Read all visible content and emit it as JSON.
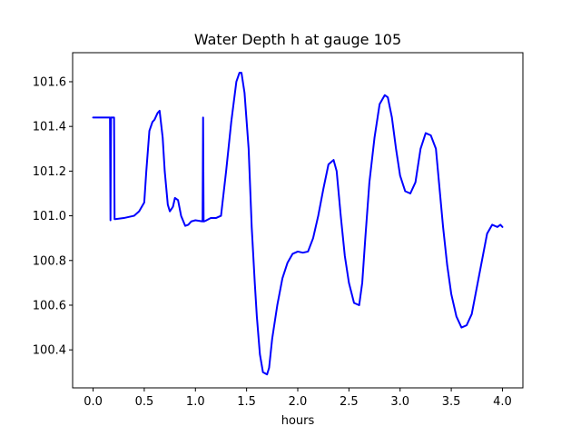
{
  "chart_data": {
    "type": "line",
    "title": "Water Depth h at gauge 105",
    "xlabel": "hours",
    "ylabel": "",
    "xlim": [
      -0.2,
      4.2
    ],
    "ylim": [
      100.23,
      101.73
    ],
    "xticks": [
      0.0,
      0.5,
      1.0,
      1.5,
      2.0,
      2.5,
      3.0,
      3.5,
      4.0
    ],
    "xtick_labels": [
      "0.0",
      "0.5",
      "1.0",
      "1.5",
      "2.0",
      "2.5",
      "3.0",
      "3.5",
      "4.0"
    ],
    "yticks": [
      100.4,
      100.6,
      100.8,
      101.0,
      101.2,
      101.4,
      101.6
    ],
    "ytick_labels": [
      "100.4",
      "100.6",
      "100.8",
      "101.0",
      "101.2",
      "101.4",
      "101.6"
    ],
    "grid": false,
    "series": [
      {
        "color": "#0000ff",
        "x": [
          0.0,
          0.16,
          0.165,
          0.17,
          0.175,
          0.2,
          0.205,
          0.21,
          0.215,
          0.3,
          0.4,
          0.45,
          0.5,
          0.52,
          0.55,
          0.58,
          0.6,
          0.63,
          0.65,
          0.68,
          0.7,
          0.73,
          0.75,
          0.78,
          0.8,
          0.83,
          0.86,
          0.9,
          0.93,
          0.96,
          1.0,
          1.07,
          1.075,
          1.08,
          1.085,
          1.1,
          1.15,
          1.2,
          1.25,
          1.3,
          1.35,
          1.4,
          1.43,
          1.45,
          1.48,
          1.52,
          1.55,
          1.58,
          1.6,
          1.63,
          1.66,
          1.7,
          1.72,
          1.75,
          1.8,
          1.85,
          1.9,
          1.95,
          2.0,
          2.05,
          2.1,
          2.15,
          2.2,
          2.25,
          2.3,
          2.35,
          2.38,
          2.42,
          2.46,
          2.5,
          2.55,
          2.6,
          2.63,
          2.66,
          2.7,
          2.75,
          2.8,
          2.85,
          2.88,
          2.92,
          2.96,
          3.0,
          3.05,
          3.1,
          3.15,
          3.2,
          3.25,
          3.3,
          3.35,
          3.38,
          3.42,
          3.46,
          3.5,
          3.55,
          3.6,
          3.65,
          3.7,
          3.75,
          3.8,
          3.85,
          3.9,
          3.95,
          3.98,
          4.0
        ],
        "y": [
          101.44,
          101.44,
          101.44,
          100.98,
          101.44,
          101.44,
          101.44,
          100.985,
          100.985,
          100.99,
          101.0,
          101.02,
          101.06,
          101.2,
          101.38,
          101.42,
          101.43,
          101.46,
          101.47,
          101.35,
          101.2,
          101.05,
          101.02,
          101.04,
          101.08,
          101.07,
          101.0,
          100.955,
          100.96,
          100.975,
          100.98,
          100.975,
          101.44,
          100.975,
          100.975,
          100.978,
          100.99,
          100.99,
          101.0,
          101.2,
          101.42,
          101.6,
          101.64,
          101.64,
          101.55,
          101.3,
          100.95,
          100.7,
          100.55,
          100.38,
          100.3,
          100.29,
          100.32,
          100.45,
          100.6,
          100.72,
          100.79,
          100.83,
          100.84,
          100.835,
          100.84,
          100.9,
          101.0,
          101.12,
          101.23,
          101.25,
          101.2,
          101.0,
          100.82,
          100.7,
          100.61,
          100.6,
          100.7,
          100.9,
          101.15,
          101.35,
          101.5,
          101.54,
          101.53,
          101.44,
          101.3,
          101.18,
          101.11,
          101.1,
          101.15,
          101.3,
          101.37,
          101.36,
          101.3,
          101.15,
          100.95,
          100.78,
          100.65,
          100.55,
          100.5,
          100.51,
          100.56,
          100.68,
          100.8,
          100.92,
          100.96,
          100.95,
          100.96,
          100.95
        ]
      }
    ]
  }
}
